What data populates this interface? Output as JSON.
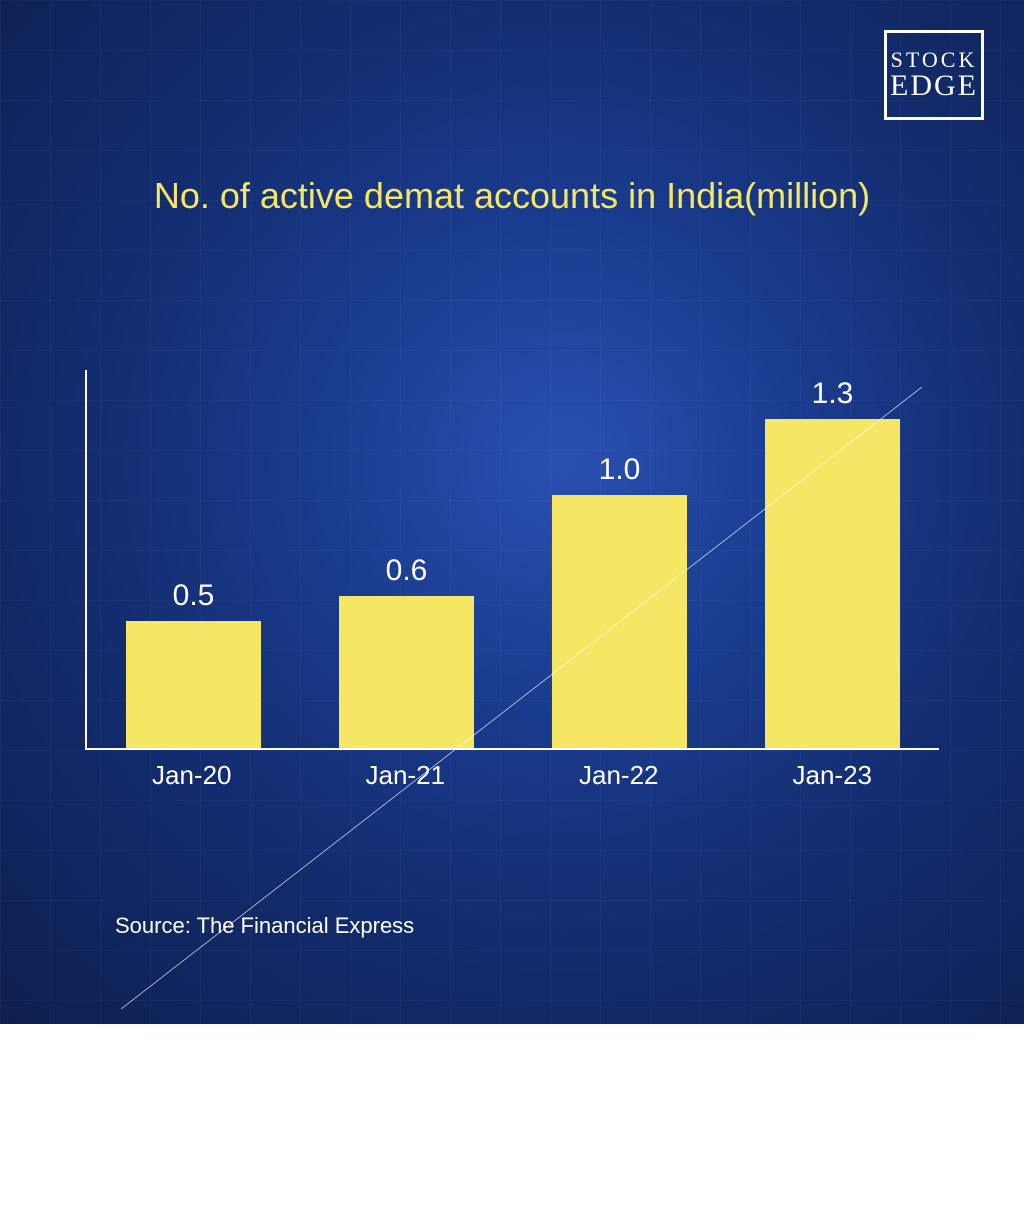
{
  "logo": {
    "line1": "STOCK",
    "line2": "EDGE",
    "border_color": "#ffffff",
    "text_color": "#ffffff"
  },
  "title": {
    "text": "No. of active demat accounts in India(million)",
    "color": "#f5e663",
    "fontsize": 36
  },
  "chart": {
    "type": "bar",
    "categories": [
      "Jan-20",
      "Jan-21",
      "Jan-22",
      "Jan-23"
    ],
    "values": [
      0.5,
      0.6,
      1.0,
      1.3
    ],
    "value_labels": [
      "0.5",
      "0.6",
      "1.0",
      "1.3"
    ],
    "bar_color": "#f5e663",
    "bar_width_pct": 72,
    "ymax": 1.5,
    "axis_color": "#ffffff",
    "value_label_color": "#ffffff",
    "value_label_fontsize": 30,
    "xlabel_color": "#ffffff",
    "xlabel_fontsize": 26,
    "trendline": {
      "color": "#ffffff",
      "stroke_width": 2,
      "x1_pct": 4,
      "y1_pct": 75,
      "x2_pct": 98,
      "y2_pct": 2
    }
  },
  "source": {
    "text": "Source: The Financial Express",
    "color": "#ffffff",
    "fontsize": 22
  },
  "background": {
    "gradient_inner": "#2a4fb0",
    "gradient_outer": "#0d1f4f",
    "grid_color": "rgba(255,255,255,0.03)"
  }
}
